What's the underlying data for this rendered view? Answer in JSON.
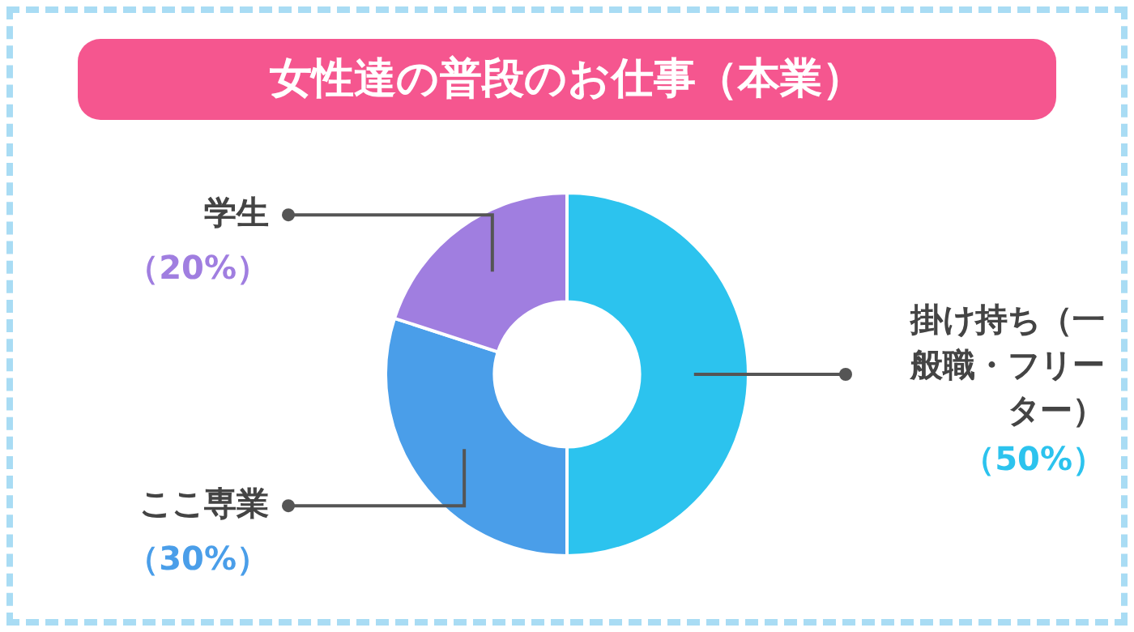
{
  "chart_data": {
    "type": "donut",
    "title": "女性達の普段のお仕事（本業）",
    "categories": [
      "掛け持ち（一般職・フリーター）",
      "ここ専業",
      "学生"
    ],
    "values": [
      50,
      30,
      20
    ],
    "colors": [
      "#2cc3ee",
      "#4a9ee9",
      "#a07ee0"
    ],
    "value_labels": [
      "（50%）",
      "（30%）",
      "（20%）"
    ],
    "legend": false
  }
}
